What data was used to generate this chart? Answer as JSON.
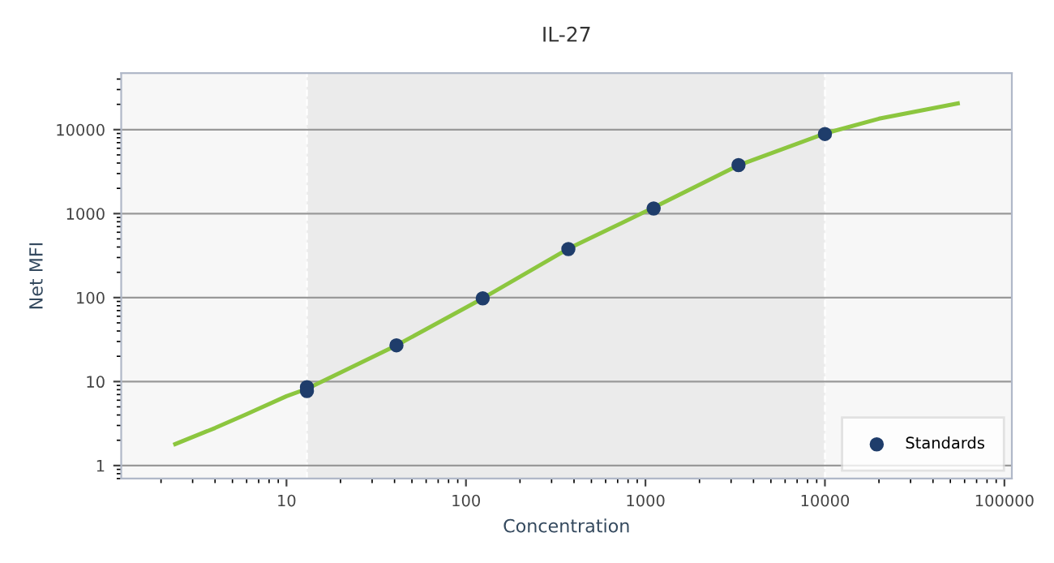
{
  "chart_data": {
    "type": "scatter",
    "title": "IL-27",
    "xlabel": "Concentration",
    "ylabel": "Net MFI",
    "log": "xy",
    "xlim": [
      1.2,
      110000
    ],
    "ylim": [
      0.7,
      47000
    ],
    "xticks": [
      10,
      100,
      1000,
      10000,
      100000
    ],
    "yticks": [
      1,
      10,
      100,
      1000,
      10000
    ],
    "grid": "y",
    "legend": "bottom right",
    "bands": [
      {
        "axis": "x",
        "from": 13,
        "to": 10000,
        "color": "#ebebeb"
      }
    ],
    "ref_lines": [
      {
        "axis": "x",
        "value": 13,
        "color": "#ffffff",
        "line_style": "dashed"
      },
      {
        "axis": "x",
        "value": 10000,
        "color": "#ffffff",
        "line_style": "dashed"
      }
    ],
    "series": [
      {
        "type": "line",
        "color": "#8cc63f",
        "marker": "none",
        "line_style": "solid",
        "x": [
          2.4,
          4,
          6,
          10,
          13,
          20,
          41,
          123,
          370,
          1111,
          3333,
          10000,
          20000,
          55000
        ],
        "values": [
          1.8,
          2.8,
          4.1,
          6.7,
          8.2,
          12.8,
          27,
          97,
          380,
          1180,
          3800,
          9000,
          13500,
          20500
        ]
      },
      {
        "name": "Standards",
        "color": "#1f3d6b",
        "marker": "circle",
        "x": [
          13,
          13,
          41,
          124,
          372,
          1111,
          3300,
          10000
        ],
        "values": [
          8.6,
          7.7,
          27,
          98,
          378,
          1150,
          3780,
          8870
        ]
      }
    ]
  }
}
